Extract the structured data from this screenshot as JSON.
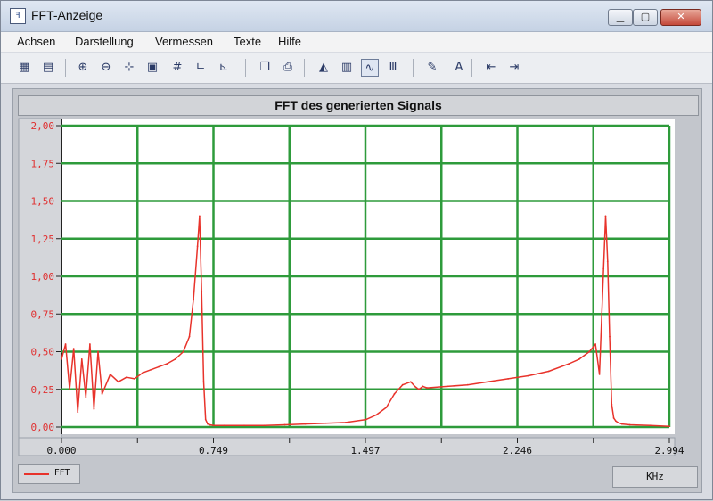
{
  "window": {
    "title": "FFT-Anzeige",
    "icon": "fft-app-icon"
  },
  "menu": [
    "Achsen",
    "Darstellung",
    "Vermessen",
    "Texte",
    "Hilfe"
  ],
  "toolbar": [
    {
      "name": "fft-view-icon",
      "glyph": "▦"
    },
    {
      "name": "table-icon",
      "glyph": "▤"
    },
    {
      "name": "zoom-in-icon",
      "glyph": "⊕"
    },
    {
      "name": "zoom-out-icon",
      "glyph": "⊖"
    },
    {
      "name": "cursor-icon",
      "glyph": "⊹"
    },
    {
      "name": "save-icon",
      "glyph": "▣"
    },
    {
      "name": "grid-icon",
      "glyph": "#"
    },
    {
      "name": "axis-linear-icon",
      "glyph": "ㄴ"
    },
    {
      "name": "axis-log-icon",
      "glyph": "⊾"
    },
    {
      "name": "copy-icon",
      "glyph": "❐"
    },
    {
      "name": "print-icon",
      "glyph": "⎙"
    },
    {
      "name": "chart-area-icon",
      "glyph": "◭"
    },
    {
      "name": "chart-bar-icon",
      "glyph": "▥"
    },
    {
      "name": "chart-line-icon",
      "glyph": "∿",
      "active": true
    },
    {
      "name": "chart-columns-icon",
      "glyph": "Ⅲ"
    },
    {
      "name": "brush-icon",
      "glyph": "✎"
    },
    {
      "name": "text-icon",
      "glyph": "A"
    },
    {
      "name": "previous-icon",
      "glyph": "⇤"
    },
    {
      "name": "next-icon",
      "glyph": "⇥"
    }
  ],
  "colors": {
    "grid": "#2e9b3b",
    "series": "#e8332b",
    "plot_bg": "#ffffff"
  },
  "chart_data": {
    "type": "line",
    "title": "FFT des generierten Signals",
    "xlabel": "",
    "ylabel": "",
    "x_unit": "KHz",
    "xlim": [
      0.0,
      2.994
    ],
    "ylim": [
      0.0,
      2.0
    ],
    "x_tick_labels": [
      "0.000",
      "0.749",
      "1.497",
      "2.246",
      "2.994"
    ],
    "y_tick_labels": [
      "0,00",
      "0,25",
      "0,50",
      "0,75",
      "1,00",
      "1,25",
      "1,50",
      "1,75",
      "2,00"
    ],
    "grid": true,
    "legend_position": "bottom-left",
    "series": [
      {
        "name": "FFT",
        "x": [
          0.0,
          0.02,
          0.04,
          0.06,
          0.08,
          0.1,
          0.12,
          0.14,
          0.16,
          0.18,
          0.2,
          0.24,
          0.28,
          0.32,
          0.36,
          0.4,
          0.44,
          0.48,
          0.52,
          0.56,
          0.6,
          0.63,
          0.65,
          0.67,
          0.68,
          0.69,
          0.7,
          0.71,
          0.72,
          0.73,
          0.75,
          0.8,
          0.9,
          1.0,
          1.1,
          1.2,
          1.3,
          1.4,
          1.5,
          1.55,
          1.6,
          1.64,
          1.68,
          1.72,
          1.74,
          1.76,
          1.78,
          1.8,
          1.9,
          2.0,
          2.1,
          2.2,
          2.3,
          2.4,
          2.5,
          2.55,
          2.6,
          2.63,
          2.65,
          2.67,
          2.68,
          2.69,
          2.7,
          2.71,
          2.72,
          2.73,
          2.74,
          2.76,
          2.8,
          2.9,
          2.994
        ],
        "values": [
          0.45,
          0.55,
          0.25,
          0.52,
          0.1,
          0.45,
          0.2,
          0.55,
          0.12,
          0.5,
          0.22,
          0.35,
          0.3,
          0.33,
          0.32,
          0.36,
          0.38,
          0.4,
          0.42,
          0.45,
          0.5,
          0.6,
          0.85,
          1.2,
          1.4,
          0.9,
          0.3,
          0.05,
          0.02,
          0.015,
          0.01,
          0.01,
          0.01,
          0.01,
          0.015,
          0.02,
          0.025,
          0.03,
          0.05,
          0.08,
          0.13,
          0.22,
          0.28,
          0.3,
          0.27,
          0.25,
          0.27,
          0.26,
          0.27,
          0.28,
          0.3,
          0.32,
          0.34,
          0.37,
          0.42,
          0.45,
          0.5,
          0.55,
          0.35,
          1.05,
          1.4,
          1.1,
          0.6,
          0.15,
          0.06,
          0.04,
          0.03,
          0.02,
          0.015,
          0.01,
          0.005
        ]
      }
    ]
  }
}
